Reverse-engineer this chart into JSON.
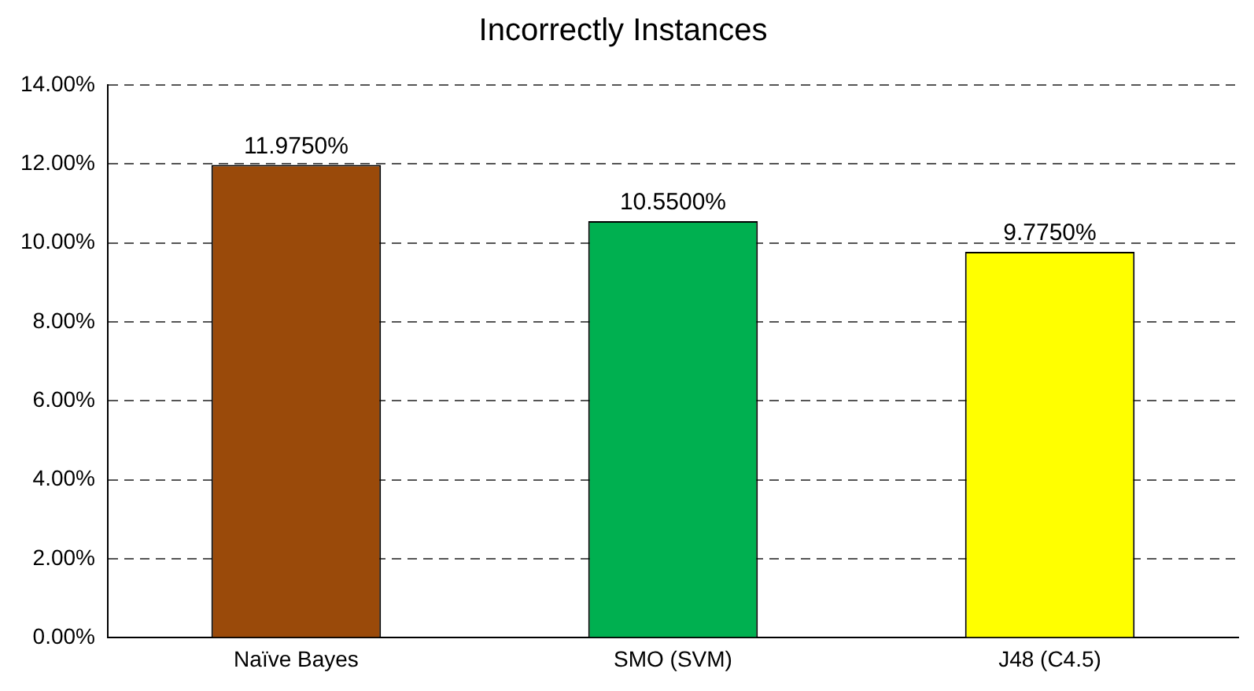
{
  "chart_data": {
    "type": "bar",
    "title": "Incorrectly Instances",
    "categories": [
      "Naïve Bayes",
      "SMO (SVM)",
      "J48 (C4.5)"
    ],
    "values": [
      11.975,
      10.55,
      9.775
    ],
    "colors": [
      "#9a4a0a",
      "#00b050",
      "#ffff00"
    ],
    "value_labels": [
      "11.9750%",
      "10.5500%",
      "9.7750%"
    ],
    "ylim": [
      0,
      14
    ],
    "yticks": [
      {
        "value": 0,
        "label": "0.00%"
      },
      {
        "value": 2,
        "label": "2.00%"
      },
      {
        "value": 4,
        "label": "4.00%"
      },
      {
        "value": 6,
        "label": "6.00%"
      },
      {
        "value": 8,
        "label": "8.00%"
      },
      {
        "value": 10,
        "label": "10.00%"
      },
      {
        "value": 12,
        "label": "12.00%"
      },
      {
        "value": 14,
        "label": "14.00%"
      }
    ],
    "grid": "y",
    "line_style": "dashed",
    "legend": false
  }
}
